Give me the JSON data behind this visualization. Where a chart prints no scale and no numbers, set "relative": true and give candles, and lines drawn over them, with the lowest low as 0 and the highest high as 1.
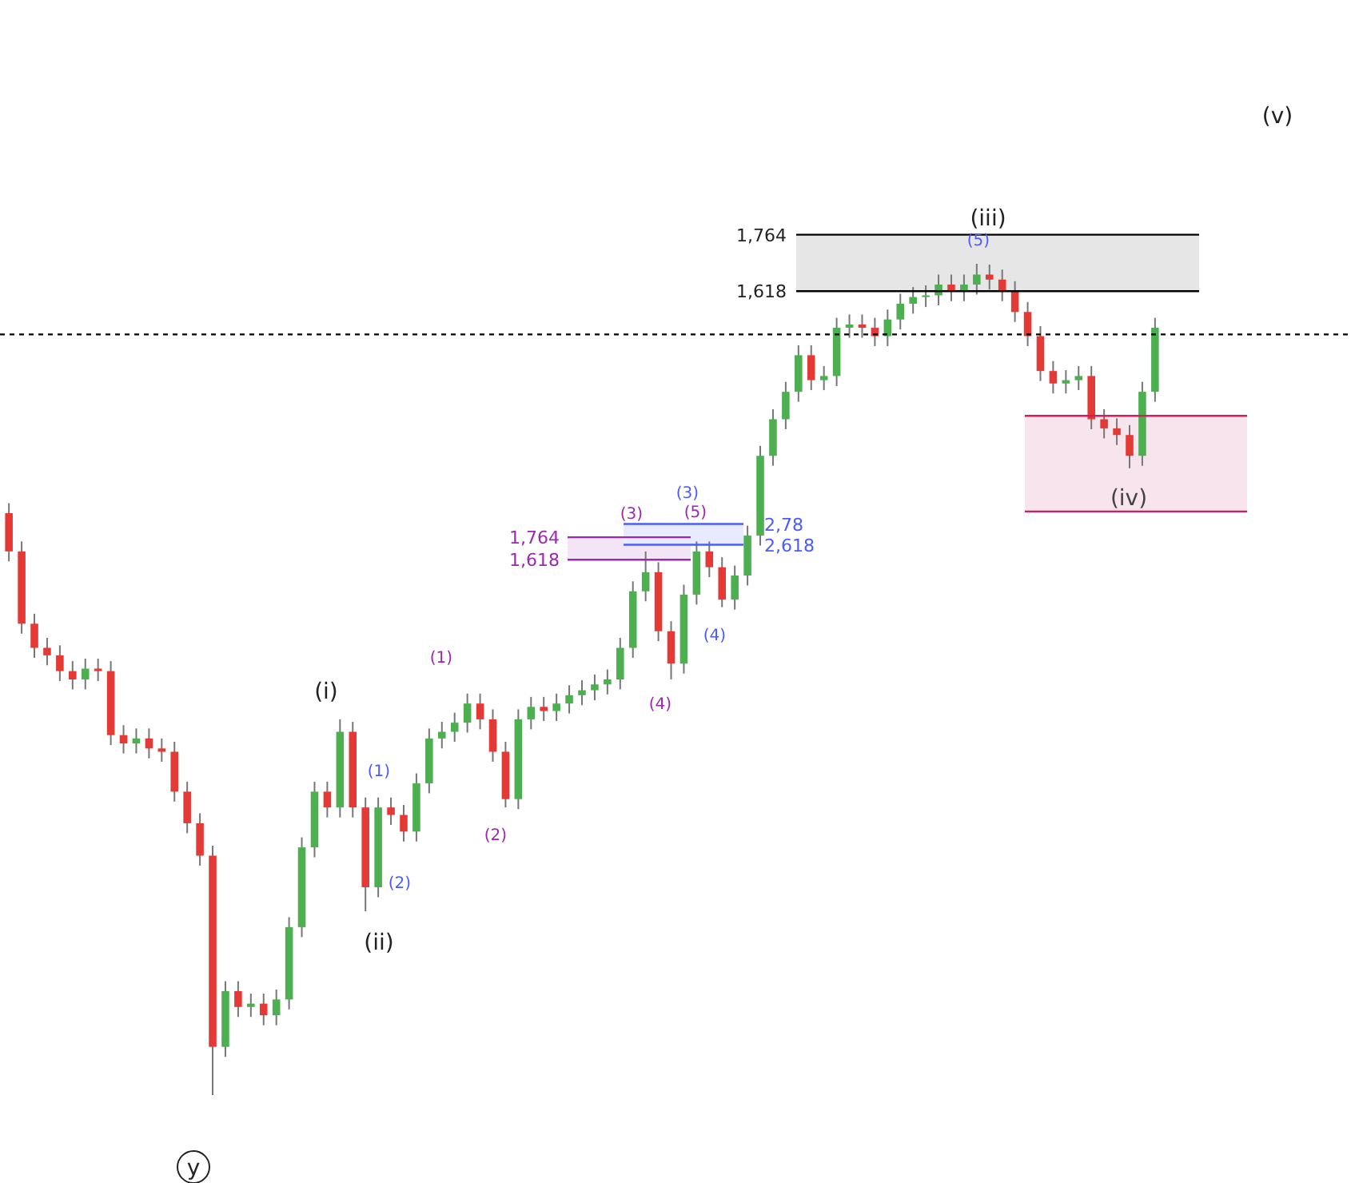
{
  "chart_data": {
    "type": "candlestick",
    "relative": true,
    "categories": [
      null,
      null,
      null,
      null,
      null,
      null,
      null,
      null,
      null,
      null,
      null,
      null,
      null,
      null,
      null,
      null,
      null,
      null,
      null,
      null,
      null,
      null,
      null,
      null,
      null,
      null,
      null,
      null,
      null,
      null,
      null,
      null,
      null,
      null,
      null,
      null,
      null,
      null,
      null,
      null,
      null,
      null,
      null,
      null,
      null,
      null,
      null,
      null,
      null,
      null,
      null,
      null,
      null,
      null,
      null,
      null,
      null,
      null,
      null,
      null,
      null,
      null,
      null,
      null,
      null,
      null,
      null,
      null,
      null,
      null,
      null,
      null,
      null,
      null,
      null,
      null,
      null,
      null,
      null,
      null,
      null,
      null,
      null,
      null,
      null,
      null,
      null,
      null,
      null,
      null,
      null
    ],
    "ohlc": [
      [
        0.7,
        0.712,
        0.642,
        0.654
      ],
      [
        0.654,
        0.666,
        0.555,
        0.567
      ],
      [
        0.567,
        0.579,
        0.526,
        0.538
      ],
      [
        0.538,
        0.55,
        0.517,
        0.529
      ],
      [
        0.529,
        0.541,
        0.498,
        0.51
      ],
      [
        0.51,
        0.522,
        0.488,
        0.5
      ],
      [
        0.5,
        0.525,
        0.488,
        0.513
      ],
      [
        0.513,
        0.525,
        0.498,
        0.51
      ],
      [
        0.51,
        0.522,
        0.421,
        0.433
      ],
      [
        0.433,
        0.445,
        0.411,
        0.423
      ],
      [
        0.423,
        0.441,
        0.411,
        0.429
      ],
      [
        0.429,
        0.441,
        0.405,
        0.417
      ],
      [
        0.417,
        0.429,
        0.401,
        0.413
      ],
      [
        0.413,
        0.425,
        0.353,
        0.365
      ],
      [
        0.365,
        0.377,
        0.315,
        0.327
      ],
      [
        0.327,
        0.339,
        0.276,
        0.288
      ],
      [
        0.288,
        0.3,
        0.0,
        0.058
      ],
      [
        0.058,
        0.137,
        0.046,
        0.125
      ],
      [
        0.125,
        0.137,
        0.094,
        0.106
      ],
      [
        0.106,
        0.122,
        0.094,
        0.11
      ],
      [
        0.11,
        0.122,
        0.084,
        0.096
      ],
      [
        0.096,
        0.127,
        0.084,
        0.115
      ],
      [
        0.115,
        0.214,
        0.103,
        0.202
      ],
      [
        0.202,
        0.31,
        0.19,
        0.298
      ],
      [
        0.298,
        0.377,
        0.286,
        0.365
      ],
      [
        0.365,
        0.377,
        0.334,
        0.346
      ],
      [
        0.346,
        0.452,
        0.334,
        0.437
      ],
      [
        0.437,
        0.449,
        0.334,
        0.346
      ],
      [
        0.346,
        0.358,
        0.221,
        0.25
      ],
      [
        0.25,
        0.358,
        0.238,
        0.346
      ],
      [
        0.346,
        0.358,
        0.325,
        0.337
      ],
      [
        0.337,
        0.349,
        0.305,
        0.317
      ],
      [
        0.317,
        0.387,
        0.305,
        0.375
      ],
      [
        0.375,
        0.441,
        0.363,
        0.429
      ],
      [
        0.429,
        0.449,
        0.417,
        0.437
      ],
      [
        0.437,
        0.46,
        0.425,
        0.448
      ],
      [
        0.448,
        0.483,
        0.436,
        0.471
      ],
      [
        0.471,
        0.483,
        0.44,
        0.452
      ],
      [
        0.452,
        0.464,
        0.401,
        0.413
      ],
      [
        0.413,
        0.425,
        0.346,
        0.356
      ],
      [
        0.356,
        0.464,
        0.344,
        0.452
      ],
      [
        0.452,
        0.479,
        0.44,
        0.467
      ],
      [
        0.467,
        0.479,
        0.45,
        0.462
      ],
      [
        0.462,
        0.483,
        0.45,
        0.471
      ],
      [
        0.471,
        0.493,
        0.459,
        0.481
      ],
      [
        0.481,
        0.499,
        0.469,
        0.487
      ],
      [
        0.487,
        0.506,
        0.475,
        0.494
      ],
      [
        0.494,
        0.512,
        0.482,
        0.5
      ],
      [
        0.5,
        0.55,
        0.488,
        0.538
      ],
      [
        0.538,
        0.618,
        0.526,
        0.606
      ],
      [
        0.606,
        0.654,
        0.594,
        0.629
      ],
      [
        0.629,
        0.641,
        0.546,
        0.558
      ],
      [
        0.558,
        0.57,
        0.5,
        0.519
      ],
      [
        0.519,
        0.614,
        0.507,
        0.602
      ],
      [
        0.602,
        0.666,
        0.59,
        0.654
      ],
      [
        0.654,
        0.666,
        0.623,
        0.635
      ],
      [
        0.635,
        0.647,
        0.587,
        0.596
      ],
      [
        0.596,
        0.637,
        0.584,
        0.625
      ],
      [
        0.625,
        0.685,
        0.613,
        0.673
      ],
      [
        0.673,
        0.781,
        0.661,
        0.769
      ],
      [
        0.769,
        0.825,
        0.757,
        0.813
      ],
      [
        0.813,
        0.858,
        0.801,
        0.846
      ],
      [
        0.846,
        0.902,
        0.834,
        0.89
      ],
      [
        0.89,
        0.902,
        0.848,
        0.86
      ],
      [
        0.86,
        0.877,
        0.848,
        0.865
      ],
      [
        0.865,
        0.935,
        0.853,
        0.923
      ],
      [
        0.923,
        0.939,
        0.911,
        0.927
      ],
      [
        0.927,
        0.939,
        0.911,
        0.923
      ],
      [
        0.923,
        0.935,
        0.901,
        0.913
      ],
      [
        0.913,
        0.945,
        0.901,
        0.933
      ],
      [
        0.933,
        0.964,
        0.921,
        0.952
      ],
      [
        0.952,
        0.972,
        0.94,
        0.96
      ],
      [
        0.96,
        0.974,
        0.948,
        0.962
      ],
      [
        0.962,
        0.987,
        0.95,
        0.975
      ],
      [
        0.975,
        0.987,
        0.955,
        0.967
      ],
      [
        0.967,
        0.987,
        0.955,
        0.975
      ],
      [
        0.975,
        1.0,
        0.963,
        0.987
      ],
      [
        0.987,
        0.999,
        0.969,
        0.981
      ],
      [
        0.981,
        0.993,
        0.955,
        0.967
      ],
      [
        0.967,
        0.979,
        0.93,
        0.942
      ],
      [
        0.942,
        0.954,
        0.901,
        0.913
      ],
      [
        0.913,
        0.925,
        0.859,
        0.871
      ],
      [
        0.871,
        0.883,
        0.844,
        0.856
      ],
      [
        0.856,
        0.872,
        0.844,
        0.86
      ],
      [
        0.86,
        0.877,
        0.848,
        0.865
      ],
      [
        0.865,
        0.877,
        0.801,
        0.813
      ],
      [
        0.813,
        0.825,
        0.79,
        0.802
      ],
      [
        0.802,
        0.814,
        0.782,
        0.794
      ],
      [
        0.794,
        0.806,
        0.754,
        0.769
      ],
      [
        0.769,
        0.858,
        0.757,
        0.846
      ],
      [
        0.846,
        0.935,
        0.834,
        0.923
      ]
    ],
    "bands": [
      {
        "axis": "y",
        "from": 0.967,
        "to": 1.035,
        "color": "#e6e6e6"
      },
      {
        "axis": "y",
        "from": 0.644,
        "to": 0.671,
        "color": "#f3e5f5"
      },
      {
        "axis": "y",
        "from": 0.662,
        "to": 0.687,
        "color": "#e8eaff"
      },
      {
        "axis": "y",
        "from": 0.702,
        "to": 0.817,
        "color": "#f8e4ec"
      }
    ],
    "ref_lines": [
      {
        "axis": "y",
        "value": 1.035,
        "color": "#000000"
      },
      {
        "axis": "y",
        "value": 0.967,
        "color": "#000000"
      },
      {
        "axis": "y",
        "value": 0.671,
        "color": "#9c27b0"
      },
      {
        "axis": "y",
        "value": 0.644,
        "color": "#9c27b0"
      },
      {
        "axis": "y",
        "value": 0.687,
        "color": "#4a5cff"
      },
      {
        "axis": "y",
        "value": 0.662,
        "color": "#4a5cff"
      },
      {
        "axis": "y",
        "value": 0.817,
        "color": "#d81b60"
      },
      {
        "axis": "y",
        "value": 0.702,
        "color": "#d81b60"
      },
      {
        "axis": "y",
        "value": 0.915,
        "color": "#000000",
        "line_style": "dotted"
      }
    ],
    "annotations": [
      "(v)",
      "(iii)",
      "(5)",
      "(3)",
      "(3)",
      "(5)",
      "(4)",
      "(4)",
      "(1)",
      "(2)",
      "(1)",
      "(2)",
      "(i)",
      "(ii)",
      "(iv)",
      "y",
      "1,764",
      "1,618",
      "1,764",
      "1,618",
      "2,78",
      "2,618"
    ]
  }
}
